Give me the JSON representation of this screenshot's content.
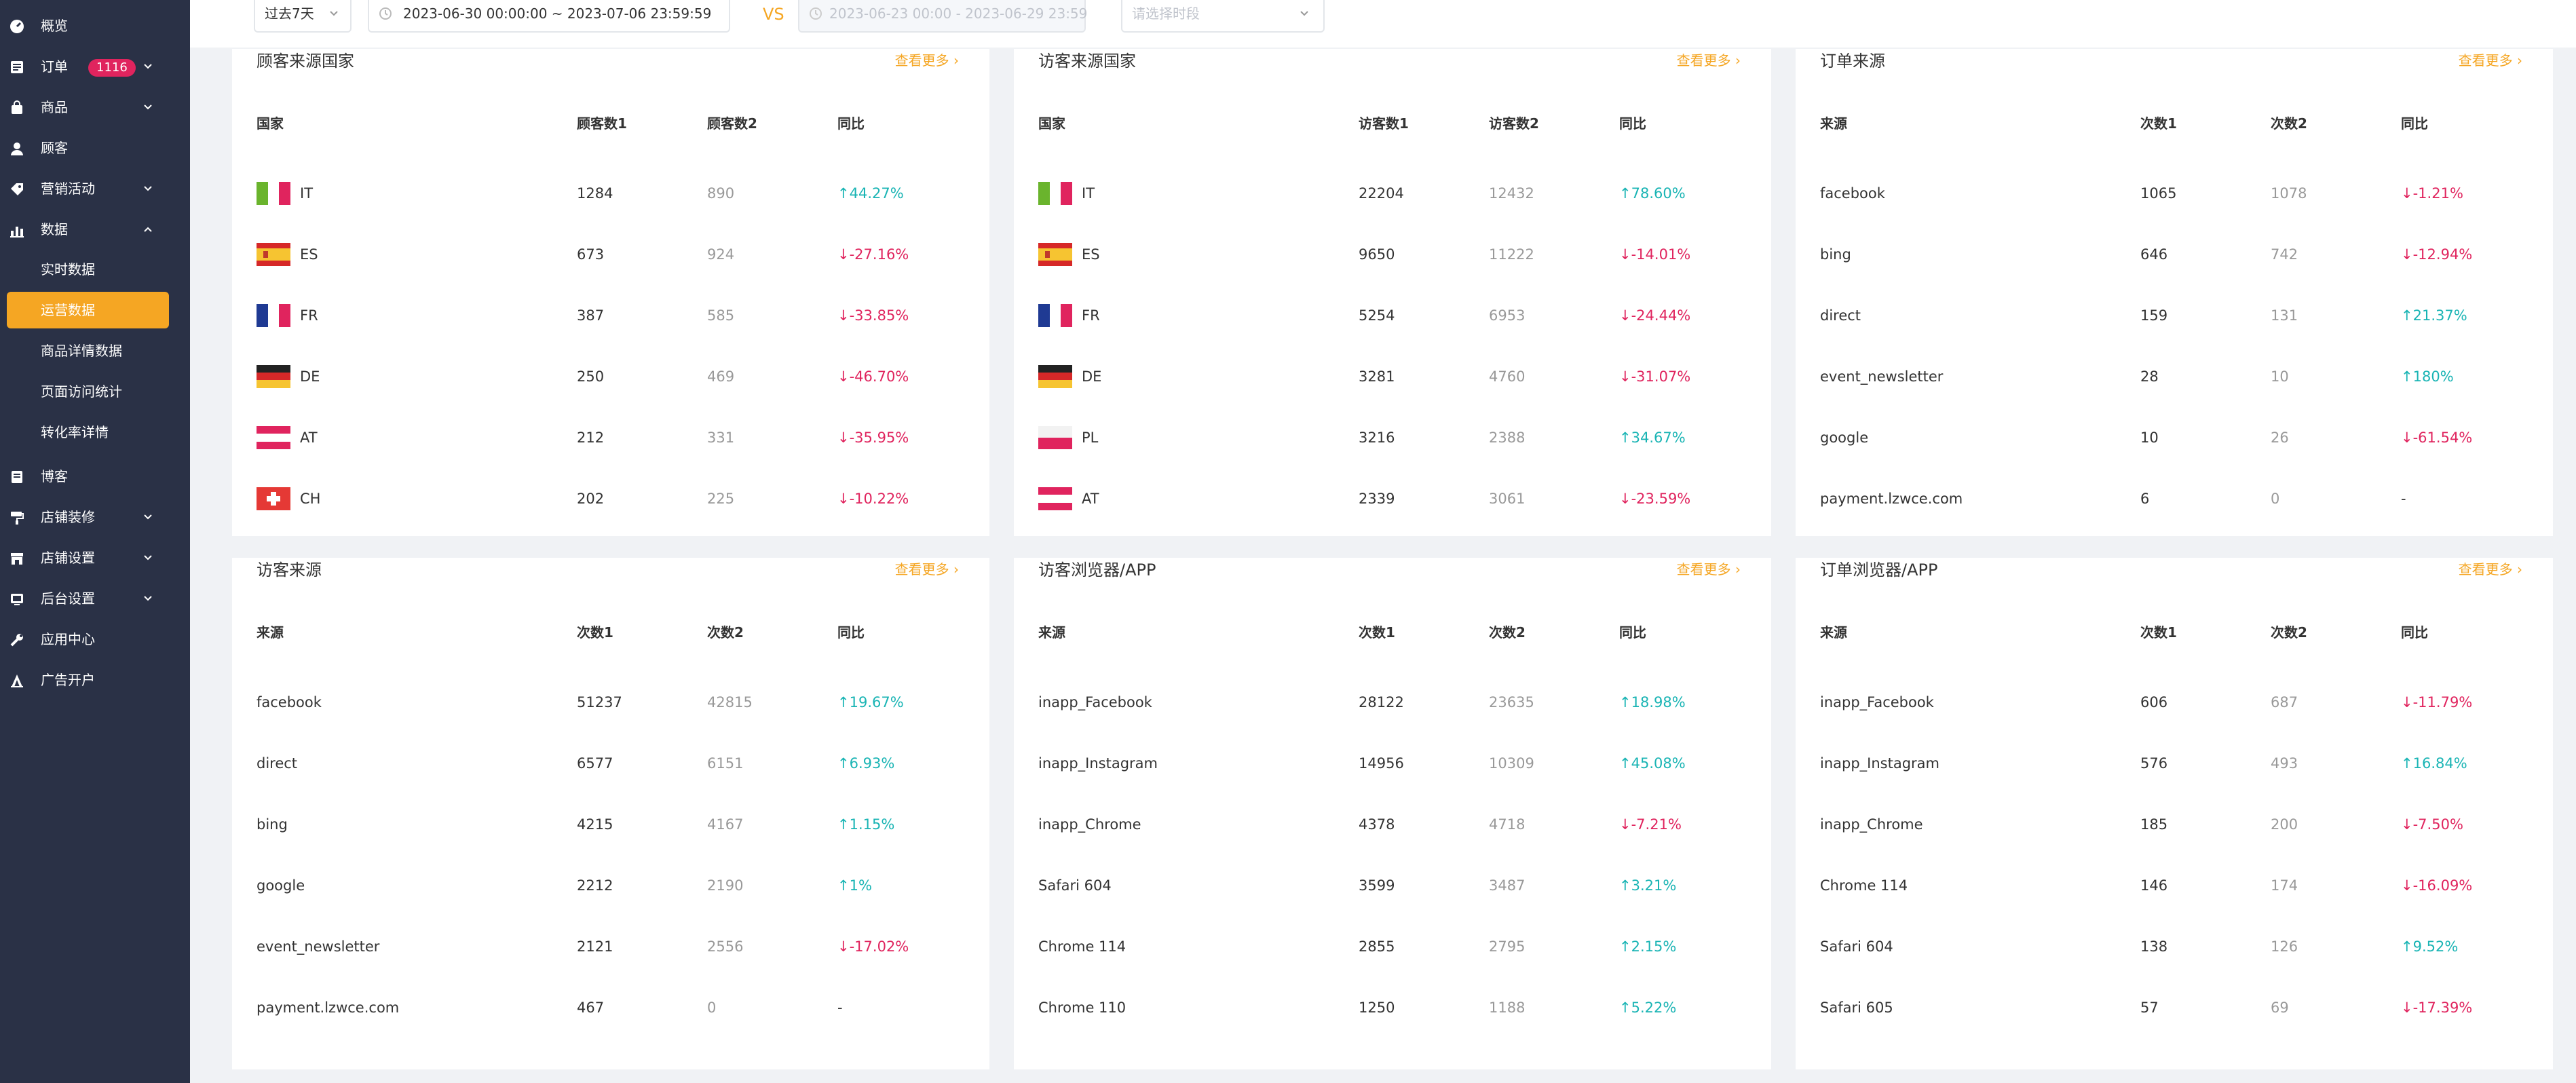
{
  "sidebar": {
    "items": [
      {
        "label": "概览",
        "icon": "dashboard-icon"
      },
      {
        "label": "订单",
        "badge": "1116",
        "icon": "list-icon"
      },
      {
        "label": "商品",
        "icon": "bag-icon"
      },
      {
        "label": "顾客",
        "icon": "user-icon"
      },
      {
        "label": "营销活动",
        "icon": "tag-icon"
      },
      {
        "label": "数据",
        "icon": "bar-chart-icon"
      },
      {
        "label": "博客",
        "icon": "blog-icon"
      },
      {
        "label": "店铺装修",
        "icon": "paint-roller-icon"
      },
      {
        "label": "店铺设置",
        "icon": "store-icon"
      },
      {
        "label": "后台设置",
        "icon": "settings-icon"
      },
      {
        "label": "应用中心",
        "icon": "wrench-icon"
      },
      {
        "label": "广告开户",
        "icon": "ad-icon"
      }
    ],
    "data_subitems": [
      "实时数据",
      "运营数据",
      "商品详情数据",
      "页面访问统计",
      "转化率详情"
    ],
    "active_subitem": "运营数据"
  },
  "toolbar": {
    "period_select": "过去7天",
    "date_range": "2023-06-30 00:00:00  ~  2023-07-06 23:59:59",
    "vs_label": "VS",
    "compare_range": "2023-06-23 00:00  -  2023-06-29 23:59",
    "compare_select_placeholder": "请选择时段"
  },
  "cards": [
    {
      "title": "顾客来源国家",
      "more": "查看更多",
      "headers": [
        "国家",
        "顾客数1",
        "顾客数2",
        "同比"
      ],
      "rows": [
        {
          "name": "IT",
          "flag": "it",
          "v1": "1284",
          "v2": "890",
          "pct": "44.27%",
          "dir": "up"
        },
        {
          "name": "ES",
          "flag": "es",
          "v1": "673",
          "v2": "924",
          "pct": "-27.16%",
          "dir": "down"
        },
        {
          "name": "FR",
          "flag": "fr",
          "v1": "387",
          "v2": "585",
          "pct": "-33.85%",
          "dir": "down"
        },
        {
          "name": "DE",
          "flag": "de",
          "v1": "250",
          "v2": "469",
          "pct": "-46.70%",
          "dir": "down"
        },
        {
          "name": "AT",
          "flag": "at",
          "v1": "212",
          "v2": "331",
          "pct": "-35.95%",
          "dir": "down"
        },
        {
          "name": "CH",
          "flag": "ch",
          "v1": "202",
          "v2": "225",
          "pct": "-10.22%",
          "dir": "down"
        }
      ]
    },
    {
      "title": "访客来源国家",
      "more": "查看更多",
      "headers": [
        "国家",
        "访客数1",
        "访客数2",
        "同比"
      ],
      "rows": [
        {
          "name": "IT",
          "flag": "it",
          "v1": "22204",
          "v2": "12432",
          "pct": "78.60%",
          "dir": "up"
        },
        {
          "name": "ES",
          "flag": "es",
          "v1": "9650",
          "v2": "11222",
          "pct": "-14.01%",
          "dir": "down"
        },
        {
          "name": "FR",
          "flag": "fr",
          "v1": "5254",
          "v2": "6953",
          "pct": "-24.44%",
          "dir": "down"
        },
        {
          "name": "DE",
          "flag": "de",
          "v1": "3281",
          "v2": "4760",
          "pct": "-31.07%",
          "dir": "down"
        },
        {
          "name": "PL",
          "flag": "pl",
          "v1": "3216",
          "v2": "2388",
          "pct": "34.67%",
          "dir": "up"
        },
        {
          "name": "AT",
          "flag": "at",
          "v1": "2339",
          "v2": "3061",
          "pct": "-23.59%",
          "dir": "down"
        }
      ]
    },
    {
      "title": "订单来源",
      "more": "查看更多",
      "headers": [
        "来源",
        "次数1",
        "次数2",
        "同比"
      ],
      "rows": [
        {
          "name": "facebook",
          "v1": "1065",
          "v2": "1078",
          "pct": "-1.21%",
          "dir": "down"
        },
        {
          "name": "bing",
          "v1": "646",
          "v2": "742",
          "pct": "-12.94%",
          "dir": "down"
        },
        {
          "name": "direct",
          "v1": "159",
          "v2": "131",
          "pct": "21.37%",
          "dir": "up"
        },
        {
          "name": "event_newsletter",
          "v1": "28",
          "v2": "10",
          "pct": "180%",
          "dir": "up"
        },
        {
          "name": "google",
          "v1": "10",
          "v2": "26",
          "pct": "-61.54%",
          "dir": "down"
        },
        {
          "name": "payment.lzwce.com",
          "v1": "6",
          "v2": "0",
          "pct": "-",
          "dir": "none"
        }
      ]
    },
    {
      "title": "访客来源",
      "more": "查看更多",
      "headers": [
        "来源",
        "次数1",
        "次数2",
        "同比"
      ],
      "rows": [
        {
          "name": "facebook",
          "v1": "51237",
          "v2": "42815",
          "pct": "19.67%",
          "dir": "up"
        },
        {
          "name": "direct",
          "v1": "6577",
          "v2": "6151",
          "pct": "6.93%",
          "dir": "up"
        },
        {
          "name": "bing",
          "v1": "4215",
          "v2": "4167",
          "pct": "1.15%",
          "dir": "up"
        },
        {
          "name": "google",
          "v1": "2212",
          "v2": "2190",
          "pct": "1%",
          "dir": "up"
        },
        {
          "name": "event_newsletter",
          "v1": "2121",
          "v2": "2556",
          "pct": "-17.02%",
          "dir": "down"
        },
        {
          "name": "payment.lzwce.com",
          "v1": "467",
          "v2": "0",
          "pct": "-",
          "dir": "none"
        }
      ]
    },
    {
      "title": "访客浏览器/APP",
      "more": "查看更多",
      "headers": [
        "来源",
        "次数1",
        "次数2",
        "同比"
      ],
      "rows": [
        {
          "name": "inapp_Facebook",
          "v1": "28122",
          "v2": "23635",
          "pct": "18.98%",
          "dir": "up"
        },
        {
          "name": "inapp_Instagram",
          "v1": "14956",
          "v2": "10309",
          "pct": "45.08%",
          "dir": "up"
        },
        {
          "name": "inapp_Chrome",
          "v1": "4378",
          "v2": "4718",
          "pct": "-7.21%",
          "dir": "down"
        },
        {
          "name": "Safari 604",
          "v1": "3599",
          "v2": "3487",
          "pct": "3.21%",
          "dir": "up"
        },
        {
          "name": "Chrome 114",
          "v1": "2855",
          "v2": "2795",
          "pct": "2.15%",
          "dir": "up"
        },
        {
          "name": "Chrome 110",
          "v1": "1250",
          "v2": "1188",
          "pct": "5.22%",
          "dir": "up"
        }
      ]
    },
    {
      "title": "订单浏览器/APP",
      "more": "查看更多",
      "headers": [
        "来源",
        "次数1",
        "次数2",
        "同比"
      ],
      "rows": [
        {
          "name": "inapp_Facebook",
          "v1": "606",
          "v2": "687",
          "pct": "-11.79%",
          "dir": "down"
        },
        {
          "name": "inapp_Instagram",
          "v1": "576",
          "v2": "493",
          "pct": "16.84%",
          "dir": "up"
        },
        {
          "name": "inapp_Chrome",
          "v1": "185",
          "v2": "200",
          "pct": "-7.50%",
          "dir": "down"
        },
        {
          "name": "Chrome 114",
          "v1": "146",
          "v2": "174",
          "pct": "-16.09%",
          "dir": "down"
        },
        {
          "name": "Safari 604",
          "v1": "138",
          "v2": "126",
          "pct": "9.52%",
          "dir": "up"
        },
        {
          "name": "Safari 605",
          "v1": "57",
          "v2": "69",
          "pct": "-17.39%",
          "dir": "down"
        }
      ]
    }
  ],
  "colors": {
    "accent": "#f5a623",
    "sidebar_bg": "#2a3146",
    "up": "#19b4b4",
    "down": "#e0245e"
  }
}
